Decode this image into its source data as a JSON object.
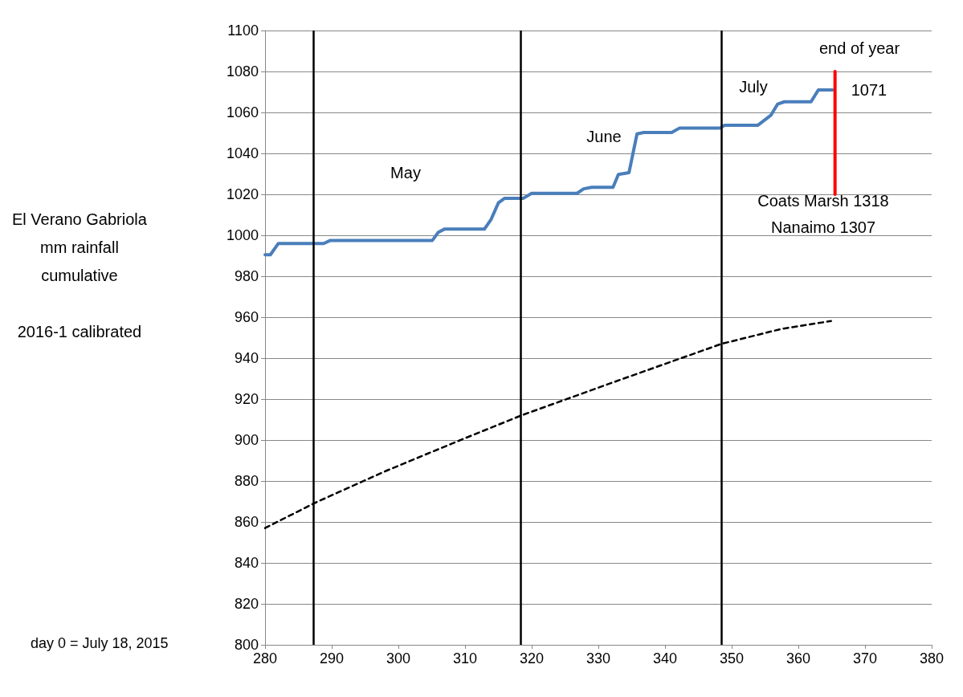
{
  "chart_data": {
    "type": "line",
    "ylabel": "El Verano Gabriola\nmm rainfall\ncumulative\n\n2016-1 calibrated",
    "xlim": [
      280,
      380
    ],
    "xticks": [
      280,
      290,
      300,
      310,
      320,
      330,
      340,
      350,
      360,
      370,
      380
    ],
    "ylim": [
      800,
      1100
    ],
    "yticks": [
      800,
      820,
      840,
      860,
      880,
      900,
      920,
      940,
      960,
      980,
      1000,
      1020,
      1040,
      1060,
      1080,
      1100
    ],
    "grid": "y",
    "marker": "none",
    "series": [
      {
        "color": "#4a7ebb",
        "line_style": "solid",
        "x": [
          280,
          280.8,
          282,
          288.8,
          289.8,
          305.1,
          306,
          306.9,
          312.9,
          313.9,
          315,
          315.9,
          318.7,
          320,
          326.8,
          327.8,
          329,
          332.2,
          333,
          334.6,
          335.8,
          336.8,
          341,
          342.2,
          348.3,
          348.9,
          353.9,
          355.9,
          356.9,
          357.9,
          361.9,
          363,
          365.1
        ],
        "values": [
          990.5,
          990.5,
          996,
          996,
          997.5,
          997.5,
          1001.5,
          1003,
          1003,
          1007.7,
          1015.8,
          1018,
          1018,
          1020.5,
          1020.5,
          1022.7,
          1023.4,
          1023.4,
          1029.7,
          1030.6,
          1049.5,
          1050.2,
          1050.2,
          1052.4,
          1052.4,
          1053.7,
          1053.7,
          1058.7,
          1064.1,
          1065.2,
          1065.2,
          1071,
          1071
        ]
      },
      {
        "color": "#000000",
        "line_style": "dashed",
        "x": [
          280,
          287.4,
          298.2,
          309.1,
          318.5,
          333.6,
          348.5,
          357.5,
          364.9
        ],
        "values": [
          857,
          869.2,
          885,
          899.7,
          912.1,
          929.8,
          947,
          954.3,
          958.1
        ]
      },
      {
        "color": "#ff0000",
        "line_style": "solid",
        "x": [
          365.5,
          365.5
        ],
        "values": [
          1080,
          1020
        ]
      }
    ],
    "ref_lines": [
      {
        "axis": "x",
        "value": 287.3,
        "color": "#000000"
      },
      {
        "axis": "x",
        "value": 318.4,
        "color": "#000000"
      },
      {
        "axis": "x",
        "value": 348.5,
        "color": "#000000"
      }
    ],
    "annotations": [
      "May",
      "June",
      "July",
      "end of year",
      "1071",
      "Coats Marsh 1318",
      "Nanaimo 1307",
      "day 0 = July 18, 2015"
    ]
  }
}
